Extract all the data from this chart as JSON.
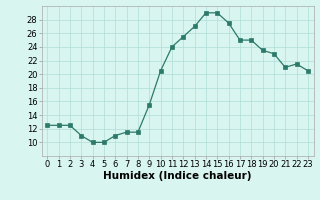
{
  "x": [
    0,
    1,
    2,
    3,
    4,
    5,
    6,
    7,
    8,
    9,
    10,
    11,
    12,
    13,
    14,
    15,
    16,
    17,
    18,
    19,
    20,
    21,
    22,
    23
  ],
  "y": [
    12.5,
    12.5,
    12.5,
    11.0,
    10.0,
    10.0,
    11.0,
    11.5,
    11.5,
    15.5,
    20.5,
    24.0,
    25.5,
    27.0,
    29.0,
    29.0,
    27.5,
    25.0,
    25.0,
    23.5,
    23.0,
    21.0,
    21.5,
    20.5
  ],
  "xlabel": "Humidex (Indice chaleur)",
  "ylim": [
    8,
    30
  ],
  "xlim": [
    -0.5,
    23.5
  ],
  "yticks": [
    10,
    12,
    14,
    16,
    18,
    20,
    22,
    24,
    26,
    28
  ],
  "xticks": [
    0,
    1,
    2,
    3,
    4,
    5,
    6,
    7,
    8,
    9,
    10,
    11,
    12,
    13,
    14,
    15,
    16,
    17,
    18,
    19,
    20,
    21,
    22,
    23
  ],
  "line_color": "#2d7a6a",
  "marker_color": "#2d7a6a",
  "bg_color": "#d8f5f0",
  "grid_color": "#b0ddd8",
  "xlabel_fontsize": 7.5,
  "tick_fontsize": 6.0
}
